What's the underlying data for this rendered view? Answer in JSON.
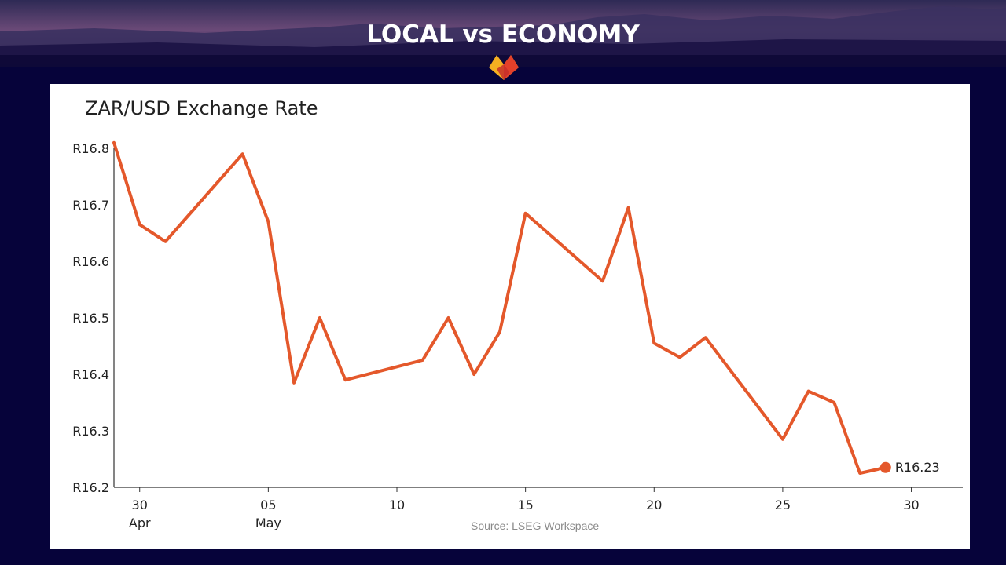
{
  "header": {
    "title": "LOCAL vs ECONOMY",
    "logo_icon": "brand-logo-icon",
    "colors": {
      "logo_top": "#f5b021",
      "logo_bottom": "#e4402a"
    }
  },
  "chart_data": {
    "type": "line",
    "title": "ZAR/USD Exchange Rate",
    "source": "Source: LSEG Workspace",
    "y_prefix": "R",
    "ylim": [
      16.2,
      16.8
    ],
    "yticks": [
      "R16.8",
      "R16.7",
      "R16.6",
      "R16.5",
      "R16.4",
      "R16.3",
      "R16.2"
    ],
    "ytick_values": [
      16.8,
      16.7,
      16.6,
      16.5,
      16.4,
      16.3,
      16.2
    ],
    "xlim": [
      "2024-04-29",
      "2024-06-01"
    ],
    "xticks": [
      {
        "date": "2024-04-30",
        "label": "30",
        "sublabel": "Apr"
      },
      {
        "date": "2024-05-05",
        "label": "05",
        "sublabel": "May"
      },
      {
        "date": "2024-05-10",
        "label": "10",
        "sublabel": ""
      },
      {
        "date": "2024-05-15",
        "label": "15",
        "sublabel": ""
      },
      {
        "date": "2024-05-20",
        "label": "20",
        "sublabel": ""
      },
      {
        "date": "2024-05-25",
        "label": "25",
        "sublabel": ""
      },
      {
        "date": "2024-05-30",
        "label": "30",
        "sublabel": ""
      }
    ],
    "series": [
      {
        "color": "#e4582b",
        "x": [
          "2024-04-29",
          "2024-04-30",
          "2024-05-01",
          "2024-05-04",
          "2024-05-05",
          "2024-05-06",
          "2024-05-07",
          "2024-05-08",
          "2024-05-11",
          "2024-05-12",
          "2024-05-13",
          "2024-05-14",
          "2024-05-15",
          "2024-05-18",
          "2024-05-19",
          "2024-05-20",
          "2024-05-21",
          "2024-05-22",
          "2024-05-25",
          "2024-05-26",
          "2024-05-27",
          "2024-05-28",
          "2024-05-29"
        ],
        "values": [
          16.81,
          16.665,
          16.635,
          16.79,
          16.67,
          16.385,
          16.5,
          16.39,
          16.425,
          16.5,
          16.4,
          16.475,
          16.685,
          16.565,
          16.695,
          16.455,
          16.43,
          16.465,
          16.285,
          16.37,
          16.35,
          16.225,
          16.235
        ]
      }
    ],
    "end_label": "R16.23",
    "grid": false,
    "legend": "none"
  }
}
